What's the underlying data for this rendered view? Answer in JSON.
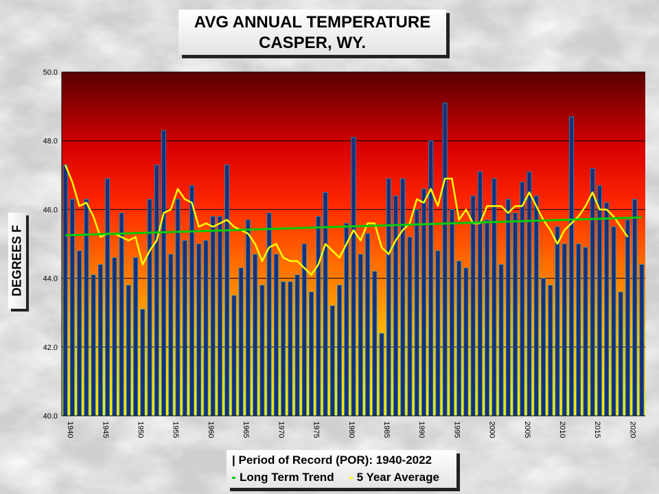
{
  "header": {
    "title_line1": "AVG ANNUAL TEMPERATURE",
    "title_line2": "CASPER, WY."
  },
  "axis": {
    "ylabel": "DEGREES F"
  },
  "legend": {
    "por_label": "| Period of Record (POR): 1940-2022",
    "trend_label": "Long Term Trend",
    "avg_label": "5 Year Average",
    "trend_color": "#00cc00",
    "avg_color": "#ffff00"
  },
  "chart_data": {
    "type": "bar",
    "title": "AVG ANNUAL TEMPERATURE CASPER, WY.",
    "xlabel": "",
    "ylabel": "DEGREES F",
    "ylim": [
      40,
      50
    ],
    "yticks": [
      "40.0",
      "42.0",
      "44.0",
      "46.0",
      "48.0",
      "50.0"
    ],
    "xticks": [
      "1940",
      "1945",
      "1950",
      "1955",
      "1960",
      "1965",
      "1970",
      "1975",
      "1980",
      "1985",
      "1990",
      "1995",
      "2000",
      "2005",
      "2010",
      "2015",
      "2020"
    ],
    "grid": true,
    "bar_color": "#1a2f7a",
    "years": [
      1940,
      1941,
      1942,
      1943,
      1944,
      1945,
      1946,
      1947,
      1948,
      1949,
      1950,
      1951,
      1952,
      1953,
      1954,
      1955,
      1956,
      1957,
      1958,
      1959,
      1960,
      1961,
      1962,
      1963,
      1964,
      1965,
      1966,
      1967,
      1968,
      1969,
      1970,
      1971,
      1972,
      1973,
      1974,
      1975,
      1976,
      1977,
      1978,
      1979,
      1980,
      1981,
      1982,
      1983,
      1984,
      1985,
      1986,
      1987,
      1988,
      1989,
      1990,
      1991,
      1992,
      1993,
      1994,
      1995,
      1996,
      1997,
      1998,
      1999,
      2000,
      2001,
      2002,
      2003,
      2004,
      2005,
      2006,
      2007,
      2008,
      2009,
      2010,
      2011,
      2012,
      2013,
      2014,
      2015,
      2016,
      2017,
      2018,
      2019,
      2020,
      2021,
      2022
    ],
    "series": [
      {
        "values": [
          47.3,
          46.3,
          44.8,
          46.3,
          44.1,
          44.4,
          46.9,
          44.6,
          45.9,
          43.8,
          44.6,
          43.1,
          46.3,
          47.3,
          48.3,
          44.7,
          46.3,
          45.1,
          46.7,
          45.0,
          45.1,
          45.8,
          45.8,
          47.3,
          43.5,
          44.3,
          45.7,
          44.7,
          43.8,
          45.9,
          44.7,
          43.9,
          43.9,
          44.1,
          45.0,
          43.6,
          45.8,
          46.5,
          43.2,
          43.8,
          45.6,
          48.1,
          44.7,
          45.3,
          44.2,
          42.4,
          46.9,
          46.4,
          46.9,
          45.2,
          46.0,
          46.6,
          48.0,
          44.8,
          49.1,
          46.0,
          44.5,
          44.3,
          46.4,
          47.1,
          45.7,
          46.9,
          44.4,
          46.3,
          45.9,
          46.8,
          47.1,
          46.4,
          44.0,
          43.8,
          45.5,
          45.0,
          48.7,
          45.0,
          44.9,
          47.2,
          46.7,
          46.2,
          45.5,
          43.6,
          45.7,
          46.3,
          44.4
        ]
      }
    ],
    "five_year_average": {
      "name": "5 Year Average",
      "years": [
        1940,
        1941,
        1942,
        1943,
        1944,
        1945,
        1946,
        1947,
        1948,
        1949,
        1950,
        1951,
        1952,
        1953,
        1954,
        1955,
        1956,
        1957,
        1958,
        1959,
        1960,
        1961,
        1962,
        1963,
        1964,
        1965,
        1966,
        1967,
        1968,
        1969,
        1970,
        1971,
        1972,
        1973,
        1974,
        1975,
        1976,
        1977,
        1978,
        1979,
        1980,
        1981,
        1982,
        1983,
        1984,
        1985,
        1986,
        1987,
        1988,
        1989,
        1990,
        1991,
        1992,
        1993,
        1994,
        1995,
        1996,
        1997,
        1998,
        1999,
        2000,
        2001,
        2002,
        2003,
        2004,
        2005,
        2006,
        2007,
        2008,
        2009,
        2010,
        2011,
        2012,
        2013,
        2014,
        2015,
        2016,
        2017,
        2018,
        2019,
        2020
      ],
      "values": [
        47.3,
        46.8,
        46.1,
        46.2,
        45.8,
        45.2,
        45.3,
        45.3,
        45.2,
        45.1,
        45.2,
        44.4,
        44.8,
        45.1,
        45.9,
        46.0,
        46.6,
        46.3,
        46.2,
        45.5,
        45.6,
        45.5,
        45.6,
        45.7,
        45.5,
        45.4,
        45.3,
        45.0,
        44.5,
        44.9,
        45.0,
        44.6,
        44.5,
        44.5,
        44.3,
        44.1,
        44.4,
        45.0,
        44.8,
        44.6,
        45.0,
        45.4,
        45.1,
        45.6,
        45.6,
        44.9,
        44.7,
        45.1,
        45.4,
        45.6,
        46.3,
        46.2,
        46.6,
        46.1,
        46.9,
        46.9,
        45.7,
        46.0,
        45.6,
        45.6,
        46.1,
        46.1,
        46.1,
        45.9,
        46.1,
        46.1,
        46.5,
        46.1,
        45.7,
        45.4,
        45.0,
        45.4,
        45.6,
        45.8,
        46.1,
        46.5,
        46.0,
        46.0,
        45.8,
        45.5,
        45.2
      ]
    },
    "trend": {
      "name": "Long Term Trend",
      "start": {
        "year": 1940,
        "value": 45.25
      },
      "end": {
        "year": 2022,
        "value": 45.77
      }
    },
    "period_of_record": "1940-2022"
  }
}
